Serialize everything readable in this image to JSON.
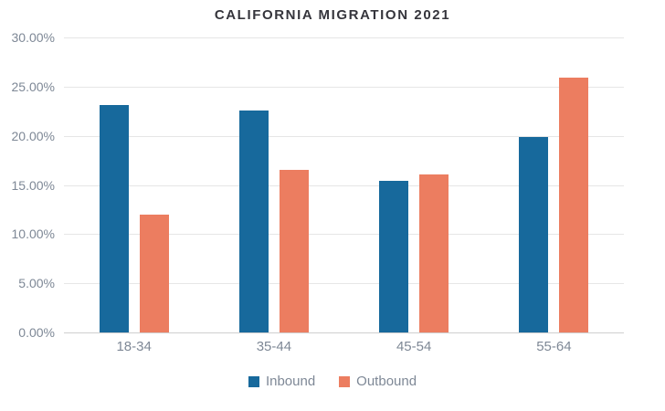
{
  "chart_data": {
    "type": "bar",
    "title": "CALIFORNIA MIGRATION 2021",
    "categories": [
      "18-34",
      "35-44",
      "45-54",
      "55-64"
    ],
    "series": [
      {
        "name": "Inbound",
        "color": "#17699c",
        "values": [
          23.1,
          22.6,
          15.4,
          19.9
        ]
      },
      {
        "name": "Outbound",
        "color": "#ec7d60",
        "values": [
          12.0,
          16.5,
          16.1,
          25.9
        ]
      }
    ],
    "ylim": [
      0,
      30
    ],
    "yticks": [
      {
        "value": 30,
        "label": "30.00%"
      },
      {
        "value": 25,
        "label": "25.00%"
      },
      {
        "value": 20,
        "label": "20.00%"
      },
      {
        "value": 15,
        "label": "15.00%"
      },
      {
        "value": 10,
        "label": "10.00%"
      },
      {
        "value": 5,
        "label": "5.00%"
      },
      {
        "value": 0,
        "label": "0.00%"
      }
    ],
    "grid": true,
    "legend_position": "bottom"
  },
  "colors": {
    "inbound": "#17699c",
    "outbound": "#ec7d60",
    "title_text": "#35353c",
    "axis_text": "#7e8896",
    "gridline": "#e6e6e6",
    "baseline": "#cfcfcf",
    "background": "#ffffff"
  }
}
